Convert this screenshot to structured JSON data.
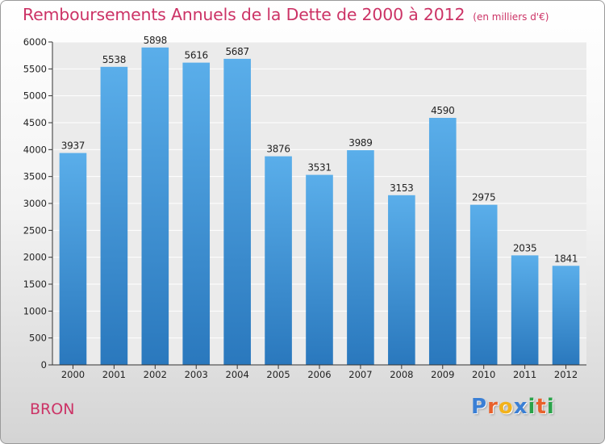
{
  "header": {
    "title": "Remboursements Annuels de la Dette de 2000 à 2012",
    "subtitle": "(en milliers d'€)"
  },
  "footer": {
    "city": "BRON",
    "logo": {
      "letters": [
        "P",
        "r",
        "o",
        "x",
        "i",
        "t",
        "i"
      ],
      "colors": [
        "#3a7fd5",
        "#e8612c",
        "#f2b21b",
        "#3a7fd5",
        "#2aa34a",
        "#e8612c",
        "#2aa34a"
      ]
    }
  },
  "chart_data": {
    "type": "bar",
    "categories": [
      "2000",
      "2001",
      "2002",
      "2003",
      "2004",
      "2005",
      "2006",
      "2007",
      "2008",
      "2009",
      "2010",
      "2011",
      "2012"
    ],
    "values": [
      3937,
      5538,
      5898,
      5616,
      5687,
      3876,
      3531,
      3989,
      3153,
      4590,
      2975,
      2035,
      1841
    ],
    "data_labels": [
      "3937",
      "5538",
      "5898",
      "5616",
      "5687",
      "3876",
      "3531",
      "3989",
      "3153",
      "4590",
      "2975",
      "2035",
      "1841"
    ],
    "title": "Remboursements Annuels de la Dette de 2000 à 2012",
    "subtitle": "(en milliers d'€)",
    "xlabel": "",
    "ylabel": "",
    "ylim": [
      0,
      6000
    ],
    "yticks": [
      0,
      500,
      1000,
      1500,
      2000,
      2500,
      3000,
      3500,
      4000,
      4500,
      5000,
      5500,
      6000
    ],
    "grid": true,
    "bar_color_top": "#5aaeea",
    "bar_color_bottom": "#2a78bd"
  }
}
